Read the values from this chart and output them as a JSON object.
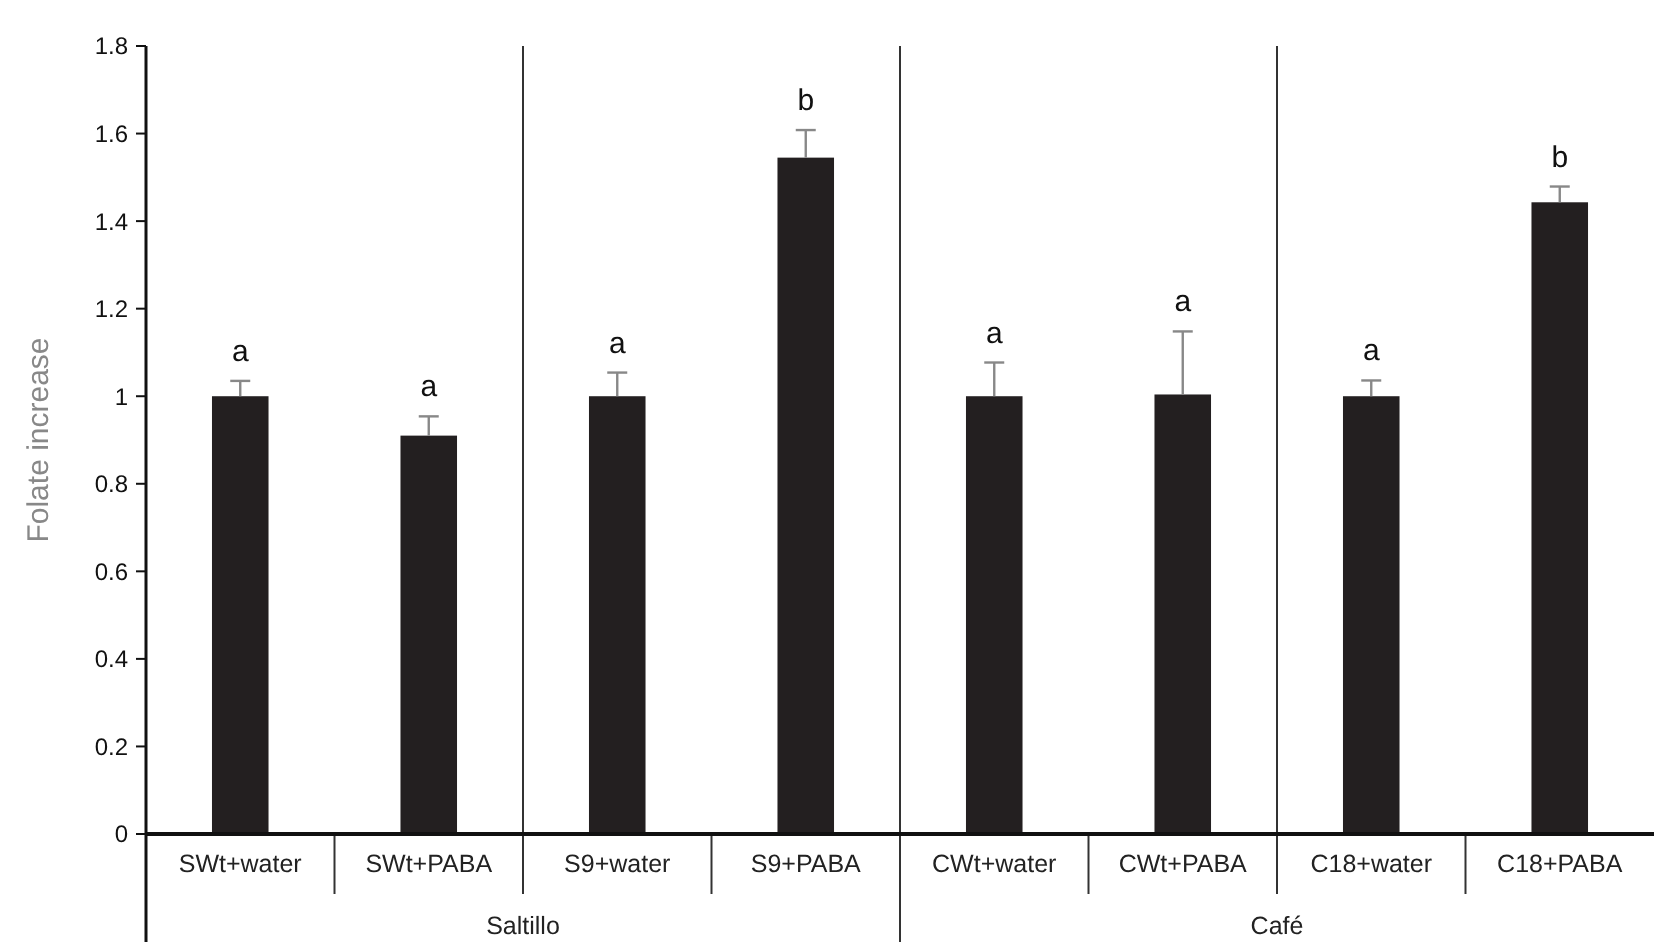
{
  "chart_data": {
    "type": "bar",
    "ylabel": "Folate increase",
    "categories": [
      "SWt+water",
      "SWt+PABA",
      "S9+water",
      "S9+PABA",
      "CWt+water",
      "CWt+PABA",
      "C18+water",
      "C18+PABA"
    ],
    "values": [
      1.0,
      0.91,
      1.0,
      1.545,
      1.0,
      1.004,
      1.0,
      1.443
    ],
    "errors": [
      [
        1.0,
        1.035
      ],
      [
        0.91,
        0.954
      ],
      [
        1.0,
        1.054
      ],
      [
        1.545,
        1.608
      ],
      [
        1.0,
        1.077
      ],
      [
        1.004,
        1.148
      ],
      [
        1.0,
        1.036
      ],
      [
        1.443,
        1.479
      ]
    ],
    "color": "#231f20",
    "ylim": [
      0,
      1.8
    ],
    "yticks": [
      0,
      0.2,
      0.4,
      0.6,
      0.8,
      1,
      1.2,
      1.4,
      1.6,
      1.8
    ],
    "annotations": [
      {
        "text": "a",
        "x": "SWt+water",
        "y": 1.035
      },
      {
        "text": "a",
        "x": "SWt+PABA",
        "y": 0.954
      },
      {
        "text": "a",
        "x": "S9+water",
        "y": 1.054
      },
      {
        "text": "b",
        "x": "S9+PABA",
        "y": 1.608
      },
      {
        "text": "a",
        "x": "CWt+water",
        "y": 1.077
      },
      {
        "text": "a",
        "x": "CWt+PABA",
        "y": 1.148
      },
      {
        "text": "a",
        "x": "C18+water",
        "y": 1.036
      },
      {
        "text": "b",
        "x": "C18+PABA",
        "y": 1.479
      },
      "Saltillo",
      "Café"
    ]
  }
}
